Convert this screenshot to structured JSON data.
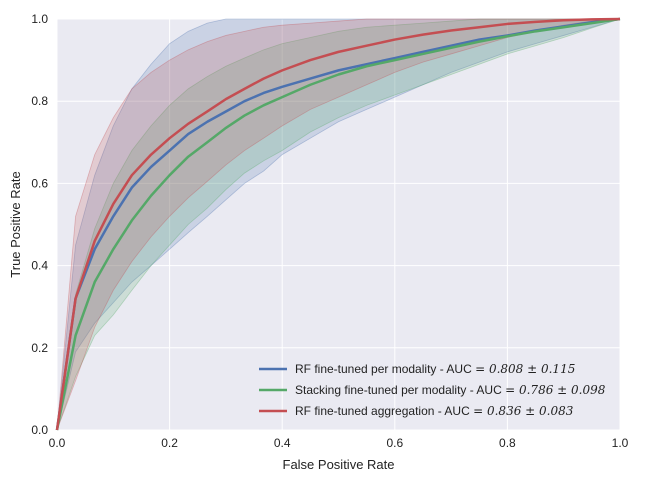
{
  "chart_data": {
    "type": "line",
    "title": "",
    "xlabel": "False Positive Rate",
    "ylabel": "True Positive Rate",
    "xlim": [
      0.0,
      1.0
    ],
    "ylim": [
      0.0,
      1.0
    ],
    "xticks": [
      "0.0",
      "0.2",
      "0.4",
      "0.6",
      "0.8",
      "1.0"
    ],
    "yticks": [
      "0.0",
      "0.2",
      "0.4",
      "0.6",
      "0.8",
      "1.0"
    ],
    "grid": true,
    "legend_position": "lower-right",
    "x": [
      0,
      0.033,
      0.067,
      0.1,
      0.133,
      0.167,
      0.2,
      0.233,
      0.267,
      0.3,
      0.333,
      0.367,
      0.4,
      0.45,
      0.5,
      0.55,
      0.6,
      0.65,
      0.7,
      0.75,
      0.8,
      0.85,
      0.9,
      0.95,
      1.0
    ],
    "series": [
      {
        "name": "RF fine-tuned per modality - AUC",
        "auc_text": "= 0.808 ± 0.115",
        "color": "#4c72b0",
        "values": [
          0,
          0.32,
          0.44,
          0.52,
          0.59,
          0.64,
          0.68,
          0.72,
          0.75,
          0.775,
          0.8,
          0.82,
          0.835,
          0.855,
          0.875,
          0.89,
          0.905,
          0.92,
          0.935,
          0.95,
          0.96,
          0.972,
          0.982,
          0.992,
          1.0
        ],
        "upper": [
          0,
          0.45,
          0.62,
          0.74,
          0.83,
          0.89,
          0.94,
          0.97,
          0.99,
          1.0,
          1.0,
          1.0,
          1.0,
          1.0,
          1.0,
          1.0,
          1.0,
          1.0,
          1.0,
          1.0,
          1.0,
          1.0,
          1.0,
          1.0,
          1.0
        ],
        "lower": [
          0,
          0.19,
          0.26,
          0.31,
          0.36,
          0.4,
          0.44,
          0.48,
          0.52,
          0.56,
          0.6,
          0.63,
          0.67,
          0.71,
          0.75,
          0.78,
          0.81,
          0.84,
          0.87,
          0.895,
          0.92,
          0.94,
          0.96,
          0.98,
          1.0
        ]
      },
      {
        "name": "Stacking fine-tuned per modality - AUC",
        "auc_text": "= 0.786 ± 0.098",
        "color": "#55a868",
        "values": [
          0,
          0.23,
          0.36,
          0.44,
          0.51,
          0.57,
          0.62,
          0.665,
          0.7,
          0.735,
          0.765,
          0.79,
          0.81,
          0.84,
          0.865,
          0.885,
          0.9,
          0.915,
          0.93,
          0.945,
          0.958,
          0.97,
          0.98,
          0.99,
          1.0
        ],
        "upper": [
          0,
          0.33,
          0.49,
          0.6,
          0.68,
          0.74,
          0.79,
          0.83,
          0.86,
          0.885,
          0.905,
          0.925,
          0.94,
          0.955,
          0.97,
          0.98,
          0.985,
          0.99,
          0.995,
          1.0,
          1.0,
          1.0,
          1.0,
          1.0,
          1.0
        ],
        "lower": [
          0,
          0.13,
          0.23,
          0.28,
          0.34,
          0.4,
          0.45,
          0.5,
          0.54,
          0.585,
          0.625,
          0.655,
          0.68,
          0.725,
          0.76,
          0.79,
          0.815,
          0.84,
          0.865,
          0.89,
          0.915,
          0.935,
          0.955,
          0.978,
          1.0
        ]
      },
      {
        "name": "RF fine-tuned aggregation - AUC",
        "auc_text": "= 0.836 ± 0.083",
        "color": "#c44e52",
        "values": [
          0,
          0.32,
          0.46,
          0.55,
          0.62,
          0.67,
          0.71,
          0.745,
          0.775,
          0.805,
          0.83,
          0.855,
          0.875,
          0.9,
          0.92,
          0.935,
          0.95,
          0.962,
          0.972,
          0.98,
          0.988,
          0.993,
          0.997,
          0.999,
          1.0
        ],
        "upper": [
          0,
          0.52,
          0.67,
          0.76,
          0.83,
          0.87,
          0.9,
          0.925,
          0.945,
          0.96,
          0.97,
          0.98,
          0.985,
          0.99,
          0.995,
          1.0,
          1.0,
          1.0,
          1.0,
          1.0,
          1.0,
          1.0,
          1.0,
          1.0,
          1.0
        ],
        "lower": [
          0,
          0.12,
          0.25,
          0.34,
          0.41,
          0.47,
          0.52,
          0.565,
          0.605,
          0.645,
          0.68,
          0.71,
          0.74,
          0.78,
          0.81,
          0.84,
          0.87,
          0.895,
          0.915,
          0.935,
          0.955,
          0.97,
          0.985,
          0.995,
          1.0
        ]
      }
    ]
  }
}
